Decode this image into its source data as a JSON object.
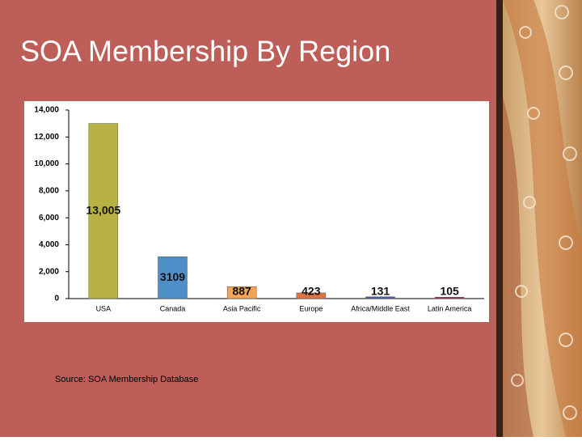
{
  "slide_title": "SOA Membership By Region",
  "source": "Source:  SOA Membership Database",
  "chart_data": {
    "type": "bar",
    "categories": [
      "USA",
      "Canada",
      "Asia Pacific",
      "Europe",
      "Africa/Middle East",
      "Latin America"
    ],
    "values": [
      13005,
      3109,
      887,
      423,
      131,
      105
    ],
    "value_labels": [
      "13,005",
      "3109",
      "887",
      "423",
      "131",
      "105"
    ],
    "colors": [
      "#b8b244",
      "#4f8fc8",
      "#f4a456",
      "#e0733f",
      "#4a5fa6",
      "#9c3a4a"
    ],
    "ylim": [
      0,
      14000
    ],
    "yticks": [
      0,
      {
        "value": 2000,
        "label": "2,000"
      },
      {
        "value": 4000,
        "label": "4,000"
      },
      {
        "value": 6000,
        "label": "6,000"
      },
      {
        "value": 8000,
        "label": "8,000"
      },
      {
        "value": 10000,
        "label": "10,000"
      },
      {
        "value": 12000,
        "label": "12,000"
      },
      {
        "value": 14000,
        "label": "14,000"
      }
    ],
    "grid": false
  }
}
